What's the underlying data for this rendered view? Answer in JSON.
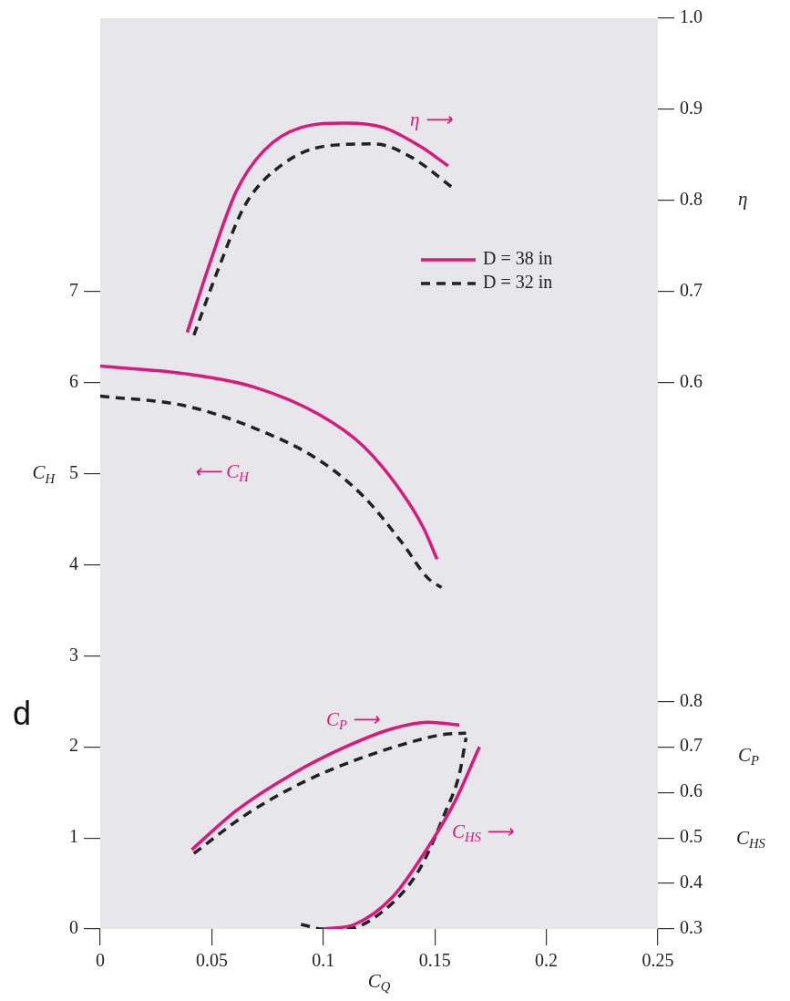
{
  "chart_data": {
    "type": "line",
    "xlabel": "C$_{Q}$",
    "ylabel": "C$_{H}$",
    "y2label": "η",
    "y3label": "C$_{P}$",
    "xlim": [
      0,
      0.25
    ],
    "xticks": [
      0,
      0.05,
      0.1,
      0.15,
      0.2,
      0.25
    ],
    "ylim": [
      0,
      10
    ],
    "yticks": [
      0,
      1,
      2,
      3,
      4,
      5,
      6,
      7
    ],
    "y2lim": [
      0,
      1
    ],
    "y2ticks": [
      0.6,
      0.7,
      0.8,
      0.9,
      {
        "value": 1,
        "label": "1.0"
      }
    ],
    "y3lim": [
      0.3,
      2.3
    ],
    "y3ticks": [
      0.3,
      0.4,
      0.5,
      0.6,
      0.7,
      0.8
    ],
    "grid": false,
    "legend": "top right",
    "marker": "none",
    "series": [
      {
        "name": "D = 38 in",
        "color": "#d81b7a",
        "axis": "y2",
        "line_style": "solid",
        "x": [
          0.039,
          0.049,
          0.061,
          0.0735,
          0.09,
          0.11,
          0.127,
          0.143,
          0.156
        ],
        "values": [
          0.655,
          0.73,
          0.81,
          0.855,
          0.88,
          0.885,
          0.88,
          0.86,
          0.838
        ]
      },
      {
        "name": "D = 32 in",
        "color": "#222222",
        "axis": "y2",
        "line_style": "dashed",
        "x": [
          0.042,
          0.053,
          0.065,
          0.082,
          0.102,
          0.123,
          0.139,
          0.159
        ],
        "values": [
          0.652,
          0.725,
          0.795,
          0.84,
          0.86,
          0.862,
          0.848,
          0.812
        ]
      },
      {
        "color": "#d81b7a",
        "axis": "y",
        "line_style": "solid",
        "x": [
          0,
          0.037,
          0.069,
          0.098,
          0.118,
          0.135,
          0.145,
          0.151
        ],
        "values": [
          6.18,
          6.1,
          5.95,
          5.65,
          5.3,
          4.8,
          4.4,
          4.06
        ]
      },
      {
        "color": "#222222",
        "axis": "y",
        "line_style": "dashed",
        "x": [
          0,
          0.037,
          0.069,
          0.098,
          0.118,
          0.135,
          0.147,
          0.153
        ],
        "values": [
          5.85,
          5.75,
          5.5,
          5.15,
          4.75,
          4.25,
          3.85,
          3.75
        ]
      },
      {
        "color": "#d81b7a",
        "axis": "y3",
        "line_style": "solid",
        "x": [
          0.041,
          0.061,
          0.086,
          0.11,
          0.131,
          0.147,
          0.161
        ],
        "values": [
          0.474,
          0.56,
          0.64,
          0.7,
          0.74,
          0.754,
          0.748
        ]
      },
      {
        "color": "#222222",
        "axis": "y3",
        "line_style": "dashed",
        "x": [
          0.042,
          0.065,
          0.09,
          0.114,
          0.139,
          0.155,
          0.164
        ],
        "values": [
          0.466,
          0.55,
          0.62,
          0.67,
          0.71,
          0.728,
          0.73
        ]
      },
      {
        "color": "#d81b7a",
        "axis": "y3",
        "line_style": "solid",
        "x": [
          0.1,
          0.114,
          0.131,
          0.147,
          0.159,
          0.17
        ],
        "values": [
          0.3,
          0.31,
          0.37,
          0.48,
          0.58,
          0.7
        ]
      },
      {
        "color": "#222222",
        "axis": "y3",
        "line_style": "dashed",
        "x": [
          0.09,
          0.1,
          0.11,
          0.127,
          0.143,
          0.155,
          0.161,
          0.164
        ],
        "values": [
          0.31,
          0.3,
          0.3,
          0.34,
          0.43,
          0.56,
          0.64,
          0.72
        ]
      }
    ],
    "annotations": [
      "η ⟶",
      "⟵ C$_{H}$",
      "C$_{P}$ ⟶",
      "C$_{HS}$ ⟶",
      "C$_{HS}$",
      "d"
    ]
  }
}
